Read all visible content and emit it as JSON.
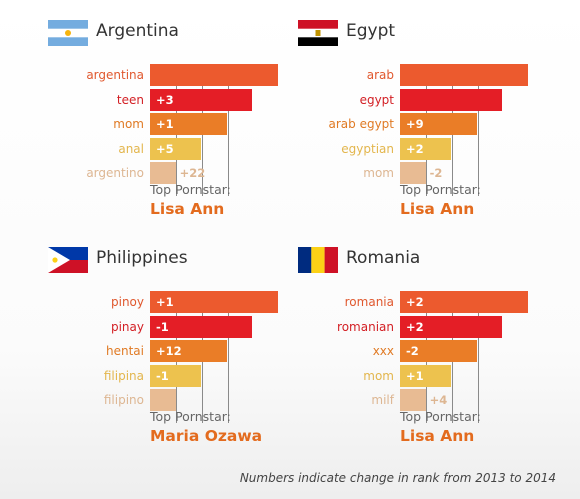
{
  "chart_data": [
    {
      "type": "bar",
      "country": "Argentina",
      "categories": [
        "argentina",
        "teen",
        "mom",
        "anal",
        "argentino"
      ],
      "values": [
        5,
        4,
        3,
        2,
        1
      ],
      "changes": [
        "",
        "+3",
        "+1",
        "+5",
        "+22"
      ],
      "top_pornstar_label": "Top Pornstar:",
      "top_pornstar": "Lisa Ann"
    },
    {
      "type": "bar",
      "country": "Egypt",
      "categories": [
        "arab",
        "egypt",
        "arab egypt",
        "egyptian",
        "mom"
      ],
      "values": [
        5,
        4,
        3,
        2,
        1
      ],
      "changes": [
        "",
        "",
        "+9",
        "+2",
        "-2"
      ],
      "top_pornstar_label": "Top Pornstar:",
      "top_pornstar": "Lisa Ann"
    },
    {
      "type": "bar",
      "country": "Philippines",
      "categories": [
        "pinoy",
        "pinay",
        "hentai",
        "filipina",
        "filipino"
      ],
      "values": [
        5,
        4,
        3,
        2,
        1
      ],
      "changes": [
        "+1",
        "-1",
        "+12",
        "-1",
        ""
      ],
      "top_pornstar_label": "Top Pornstar:",
      "top_pornstar": "Maria Ozawa"
    },
    {
      "type": "bar",
      "country": "Romania",
      "categories": [
        "romania",
        "romanian",
        "xxx",
        "mom",
        "milf"
      ],
      "values": [
        5,
        4,
        3,
        2,
        1
      ],
      "changes": [
        "+2",
        "+2",
        "-2",
        "+1",
        "+4"
      ],
      "top_pornstar_label": "Top Pornstar:",
      "top_pornstar": "Lisa Ann"
    }
  ],
  "colors": {
    "bars": [
      "#ec5a2e",
      "#e41e26",
      "#ea7d27",
      "#edc24e",
      "#e8bb93"
    ],
    "labels": [
      "#e0582e",
      "#d31f24",
      "#e07a24",
      "#e3b64d",
      "#ddb692"
    ],
    "changes": [
      "#ffffff",
      "#c81d22",
      "#ffffff",
      "#ffffff",
      "#ffffff"
    ],
    "accent": "#e36b1e"
  },
  "footnote": "Numbers indicate change in rank from 2013 to 2014"
}
